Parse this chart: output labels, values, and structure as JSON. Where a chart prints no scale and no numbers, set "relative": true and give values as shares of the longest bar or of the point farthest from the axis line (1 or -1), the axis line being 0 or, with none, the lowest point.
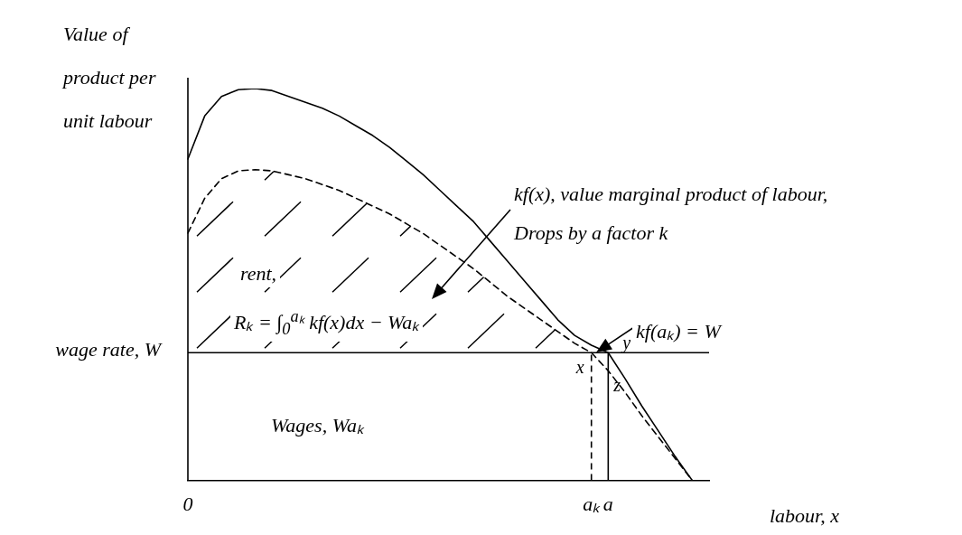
{
  "chart_data": {
    "type": "line",
    "relative": true,
    "xlabel": "labour, x",
    "ylabel": "Value of product per unit labour",
    "categories": [
      "0",
      null,
      null,
      null,
      null,
      null,
      null,
      null,
      null,
      null,
      null,
      null,
      null,
      null,
      null,
      null,
      null,
      null,
      null,
      null,
      null,
      null,
      null,
      null,
      "aₖ",
      "a",
      null,
      null,
      null,
      null,
      null,
      null
    ],
    "grid": false,
    "legend": false,
    "marker": "none",
    "series": [
      {
        "color": "#000000",
        "line_style": "solid",
        "values": [
          0.82,
          0.93,
          0.98,
          0.997,
          1,
          0.995,
          0.98,
          0.965,
          0.95,
          0.93,
          0.905,
          0.88,
          0.85,
          0.815,
          0.78,
          0.74,
          0.7,
          0.66,
          0.61,
          0.56,
          0.51,
          0.46,
          0.41,
          0.37,
          0.345,
          0.326,
          0.26,
          0.19,
          0.125,
          0.06,
          0,
          null
        ]
      },
      {
        "color": "#000000",
        "line_style": "dashed",
        "values": [
          0.631,
          0.72,
          0.77,
          0.79,
          0.793,
          0.79,
          0.78,
          0.77,
          0.755,
          0.74,
          0.72,
          0.7,
          0.68,
          0.655,
          0.63,
          0.6,
          0.57,
          0.54,
          0.505,
          0.47,
          0.44,
          0.41,
          0.38,
          0.35,
          0.326,
          0.28,
          0.225,
          0.165,
          0.11,
          0.055,
          0,
          null
        ]
      }
    ],
    "ref_lines": [
      {
        "axis": "y",
        "value": 0.326,
        "label": "wage rate, W",
        "color": "#000000"
      },
      {
        "axis": "x",
        "value": "aₖ",
        "color": "#000000",
        "line_style": "dashed"
      },
      {
        "axis": "x",
        "value": "a",
        "color": "#000000",
        "line_style": "solid"
      }
    ],
    "annotations": [
      "kf(x), value marginal product of labour,",
      "Drops by a factor k",
      "rent,",
      "Rₖ = ∫$_{0}$$^{aₖ}$ kf(x)dx − Waₖ",
      "kf(aₖ) = W",
      "Wages,  Waₖ",
      {
        "text": "x",
        "x": "aₖ",
        "y": 0.326
      },
      {
        "text": "y",
        "x": "a",
        "y": 0.326
      },
      {
        "text": "z",
        "x": "a",
        "y": 0.28
      }
    ]
  }
}
